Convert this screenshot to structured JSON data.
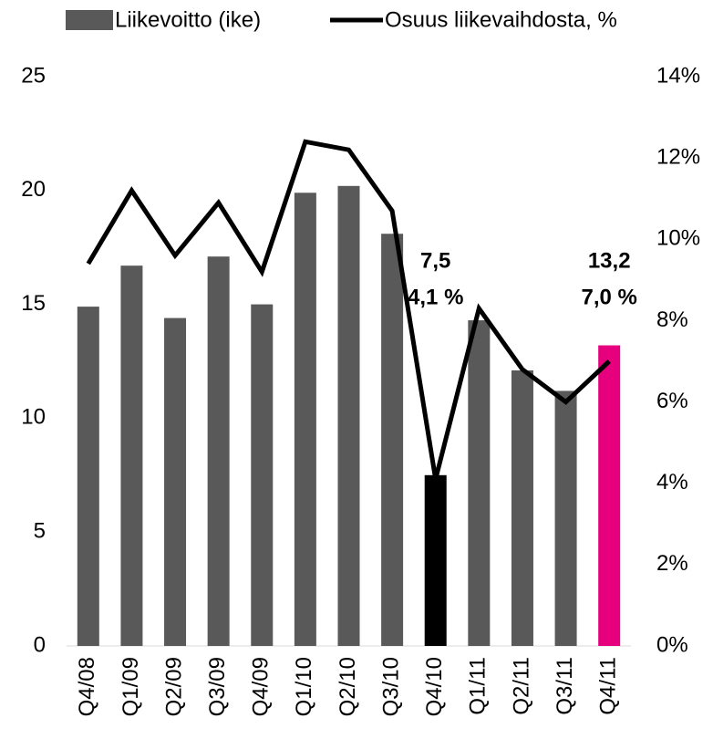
{
  "chart_data": {
    "type": "bar-line",
    "categories": [
      "Q4/08",
      "Q1/09",
      "Q2/09",
      "Q3/09",
      "Q4/09",
      "Q1/10",
      "Q2/10",
      "Q3/10",
      "Q4/10",
      "Q1/11",
      "Q2/11",
      "Q3/11",
      "Q4/11"
    ],
    "series": [
      {
        "name": "Liikevoitto (ike)",
        "type": "bar",
        "color": "#595959",
        "colors": [
          "#595959",
          "#595959",
          "#595959",
          "#595959",
          "#595959",
          "#595959",
          "#595959",
          "#595959",
          "#000000",
          "#595959",
          "#595959",
          "#595959",
          "#e6007e"
        ],
        "values": [
          14.9,
          16.7,
          14.4,
          17.1,
          15.0,
          19.9,
          20.2,
          18.1,
          7.5,
          14.3,
          12.1,
          11.2,
          13.2
        ],
        "value_labels": [
          null,
          null,
          null,
          null,
          null,
          null,
          null,
          null,
          "7,5",
          null,
          null,
          null,
          "13,2"
        ]
      },
      {
        "name": "Osuus liikevaihdosta, %",
        "type": "line",
        "axis": "y2",
        "color": "#000000",
        "values": [
          9.4,
          11.2,
          9.6,
          10.9,
          9.2,
          12.4,
          12.2,
          10.7,
          4.1,
          8.3,
          6.8,
          6.0,
          7.0
        ],
        "value_labels": [
          null,
          null,
          null,
          null,
          null,
          null,
          null,
          null,
          "4,1 %",
          null,
          null,
          null,
          "7,0 %"
        ]
      }
    ],
    "ylim": [
      0,
      25
    ],
    "yticks": [
      0,
      5,
      10,
      15,
      20,
      25
    ],
    "y2lim": [
      0,
      14
    ],
    "y2ticks": [
      {
        "value": 0,
        "label": "0%"
      },
      {
        "value": 2,
        "label": "2%"
      },
      {
        "value": 4,
        "label": "4%"
      },
      {
        "value": 6,
        "label": "6%"
      },
      {
        "value": 8,
        "label": "8%"
      },
      {
        "value": 10,
        "label": "10%"
      },
      {
        "value": 12,
        "label": "12%"
      },
      {
        "value": 14,
        "label": "14%"
      }
    ],
    "grid": false,
    "legend": "top"
  }
}
